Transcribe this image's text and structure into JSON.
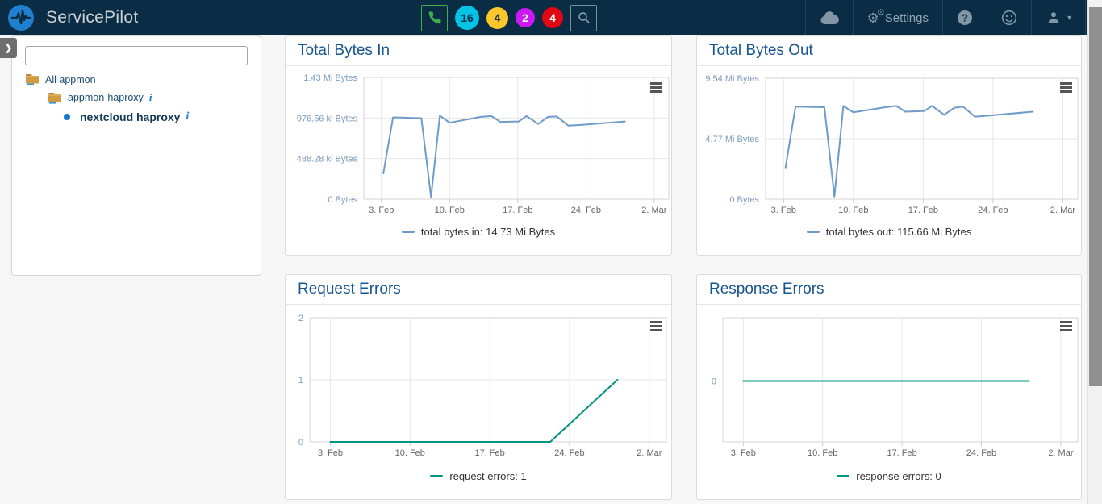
{
  "navbar": {
    "brand": "ServicePilot",
    "settings_label": "Settings",
    "badges": [
      {
        "value": "16",
        "color": "#00c3e6",
        "text_color": "#0b2d47"
      },
      {
        "value": "4",
        "color": "#fdc62a",
        "text_color": "#0b2d47"
      },
      {
        "value": "2",
        "color": "#cc18f2",
        "text_color": "#ffffff"
      },
      {
        "value": "4",
        "color": "#e30613",
        "text_color": "#ffffff"
      }
    ],
    "colors": {
      "background": "#0b2c45",
      "icon_slate": "#8296a6",
      "phone_green": "#3fae4a"
    }
  },
  "icons": {
    "info": "i",
    "chevron_right": "❯",
    "caret_down": "▾",
    "gear_large": "⚙",
    "gear_small": "⚙"
  },
  "sidebar": {
    "search_value": "",
    "search_placeholder": "",
    "tree": [
      {
        "label": "All appmon",
        "type": "folder",
        "info": false
      },
      {
        "label": "appmon-haproxy",
        "type": "folder",
        "info": true
      },
      {
        "label": "nextcloud haproxy",
        "type": "instance",
        "info": true,
        "selected": true
      }
    ]
  },
  "chart_data": [
    {
      "type": "line",
      "title": "Total Bytes In",
      "legend": "total bytes in: 14.73 Mi Bytes",
      "color": "#6f9bc8",
      "x_unit": "days since Feb 1 (leap year)",
      "x": {
        "min": 0.2,
        "max": 31.5,
        "ticks": [
          {
            "v": 2,
            "label": "3. Feb"
          },
          {
            "v": 9,
            "label": "10. Feb"
          },
          {
            "v": 16,
            "label": "17. Feb"
          },
          {
            "v": 23,
            "label": "24. Feb"
          },
          {
            "v": 30,
            "label": "2. Mar"
          }
        ]
      },
      "y": {
        "min": 0,
        "max": 1464.84,
        "unit": "ki Bytes",
        "ticks": [
          {
            "v": 0,
            "label": "0 Bytes"
          },
          {
            "v": 488.28,
            "label": "488.28 ki Bytes"
          },
          {
            "v": 976.56,
            "label": "976.56 ki Bytes"
          },
          {
            "v": 1464.84,
            "label": "1.43 Mi Bytes"
          }
        ]
      },
      "points": [
        [
          2.2,
          310
        ],
        [
          3.2,
          985
        ],
        [
          6.1,
          975
        ],
        [
          7.1,
          25
        ],
        [
          8.0,
          1005
        ],
        [
          9.0,
          920
        ],
        [
          12.2,
          990
        ],
        [
          13.3,
          1000
        ],
        [
          14.2,
          930
        ],
        [
          16.1,
          935
        ],
        [
          16.9,
          1000
        ],
        [
          18.1,
          905
        ],
        [
          19.1,
          990
        ],
        [
          20.0,
          995
        ],
        [
          21.2,
          885
        ],
        [
          22.6,
          895
        ],
        [
          27.0,
          935
        ]
      ]
    },
    {
      "type": "line",
      "title": "Total Bytes Out",
      "legend": "total bytes out: 115.66 Mi Bytes",
      "color": "#6f9bc8",
      "x_unit": "days since Feb 1 (leap year)",
      "x": {
        "min": 0.2,
        "max": 31.5,
        "ticks": [
          {
            "v": 2,
            "label": "3. Feb"
          },
          {
            "v": 9,
            "label": "10. Feb"
          },
          {
            "v": 16,
            "label": "17. Feb"
          },
          {
            "v": 23,
            "label": "24. Feb"
          },
          {
            "v": 30,
            "label": "2. Mar"
          }
        ]
      },
      "y": {
        "min": 0,
        "max": 9.54,
        "unit": "Mi Bytes",
        "ticks": [
          {
            "v": 0,
            "label": "0 Bytes"
          },
          {
            "v": 4.77,
            "label": "4.77 Mi Bytes"
          },
          {
            "v": 9.54,
            "label": "9.54 Mi Bytes"
          }
        ]
      },
      "points": [
        [
          2.2,
          2.5
        ],
        [
          3.2,
          7.3
        ],
        [
          6.1,
          7.25
        ],
        [
          7.1,
          0.2
        ],
        [
          8.0,
          7.35
        ],
        [
          9.0,
          6.85
        ],
        [
          12.2,
          7.25
        ],
        [
          13.3,
          7.35
        ],
        [
          14.2,
          6.9
        ],
        [
          16.1,
          6.95
        ],
        [
          16.9,
          7.35
        ],
        [
          18.1,
          6.65
        ],
        [
          19.1,
          7.2
        ],
        [
          20.0,
          7.3
        ],
        [
          21.2,
          6.5
        ],
        [
          22.6,
          6.6
        ],
        [
          27.0,
          6.9
        ]
      ]
    },
    {
      "type": "line",
      "title": "Request Errors",
      "legend": "request errors: 1",
      "color": "#019581",
      "x_unit": "days since Feb 1 (leap year)",
      "x": {
        "min": 0.2,
        "max": 31.5,
        "ticks": [
          {
            "v": 2,
            "label": "3. Feb"
          },
          {
            "v": 9,
            "label": "10. Feb"
          },
          {
            "v": 16,
            "label": "17. Feb"
          },
          {
            "v": 23,
            "label": "24. Feb"
          },
          {
            "v": 30,
            "label": "2. Mar"
          }
        ]
      },
      "y": {
        "min": 0,
        "max": 2,
        "unit": "errors",
        "ticks": [
          {
            "v": 0,
            "label": "0"
          },
          {
            "v": 1,
            "label": "1"
          },
          {
            "v": 2,
            "label": "2"
          }
        ]
      },
      "points": [
        [
          2.0,
          0
        ],
        [
          21.3,
          0
        ],
        [
          27.2,
          1
        ]
      ]
    },
    {
      "type": "line",
      "title": "Response Errors",
      "legend": "response errors: 0",
      "color": "#019581",
      "x_unit": "days since Feb 1 (leap year)",
      "x": {
        "min": 0.2,
        "max": 31.5,
        "ticks": [
          {
            "v": 2,
            "label": "3. Feb"
          },
          {
            "v": 9,
            "label": "10. Feb"
          },
          {
            "v": 16,
            "label": "17. Feb"
          },
          {
            "v": 23,
            "label": "24. Feb"
          },
          {
            "v": 30,
            "label": "2. Mar"
          }
        ]
      },
      "y": {
        "min": -1,
        "max": 1.04,
        "unit": "errors",
        "ticks": [
          {
            "v": 0,
            "label": "0"
          }
        ]
      },
      "points": [
        [
          2.0,
          0
        ],
        [
          27.2,
          0
        ]
      ]
    }
  ]
}
